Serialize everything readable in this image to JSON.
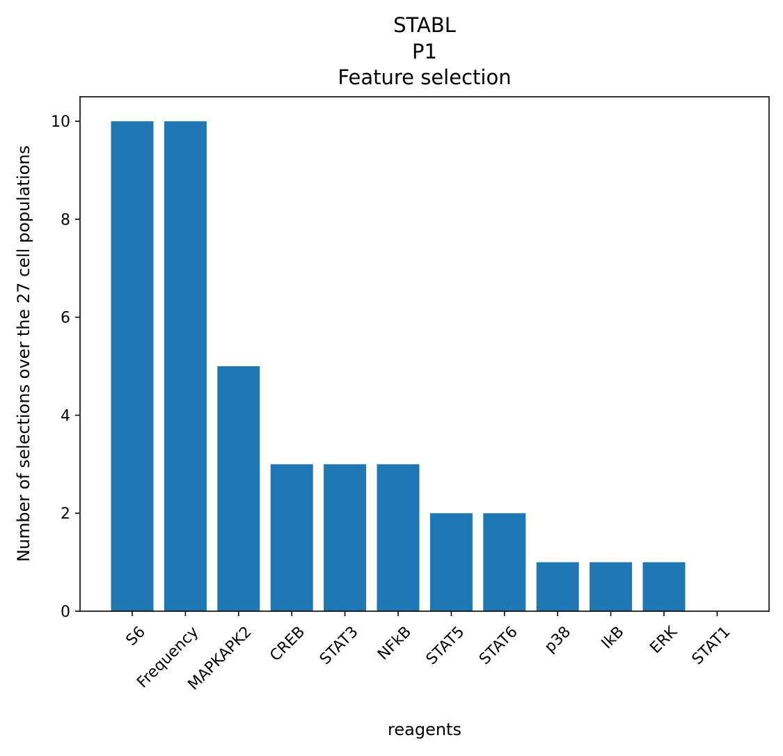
{
  "chart_data": {
    "type": "bar",
    "title_lines": [
      "STABL",
      "P1",
      "Feature selection"
    ],
    "xlabel": "reagents",
    "ylabel": "Number of selections over the 27 cell populations",
    "categories": [
      "S6",
      "Frequency",
      "MAPKAPK2",
      "CREB",
      "STAT3",
      "NFkB",
      "STAT5",
      "STAT6",
      "p38",
      "IkB",
      "ERK",
      "STAT1"
    ],
    "values": [
      10,
      10,
      5,
      3,
      3,
      3,
      2,
      2,
      1,
      1,
      1,
      0
    ],
    "ylim": [
      0,
      10.5
    ],
    "yticks": [
      0,
      2,
      4,
      6,
      8,
      10
    ],
    "grid": false,
    "bar_color": "#1f77b4"
  }
}
